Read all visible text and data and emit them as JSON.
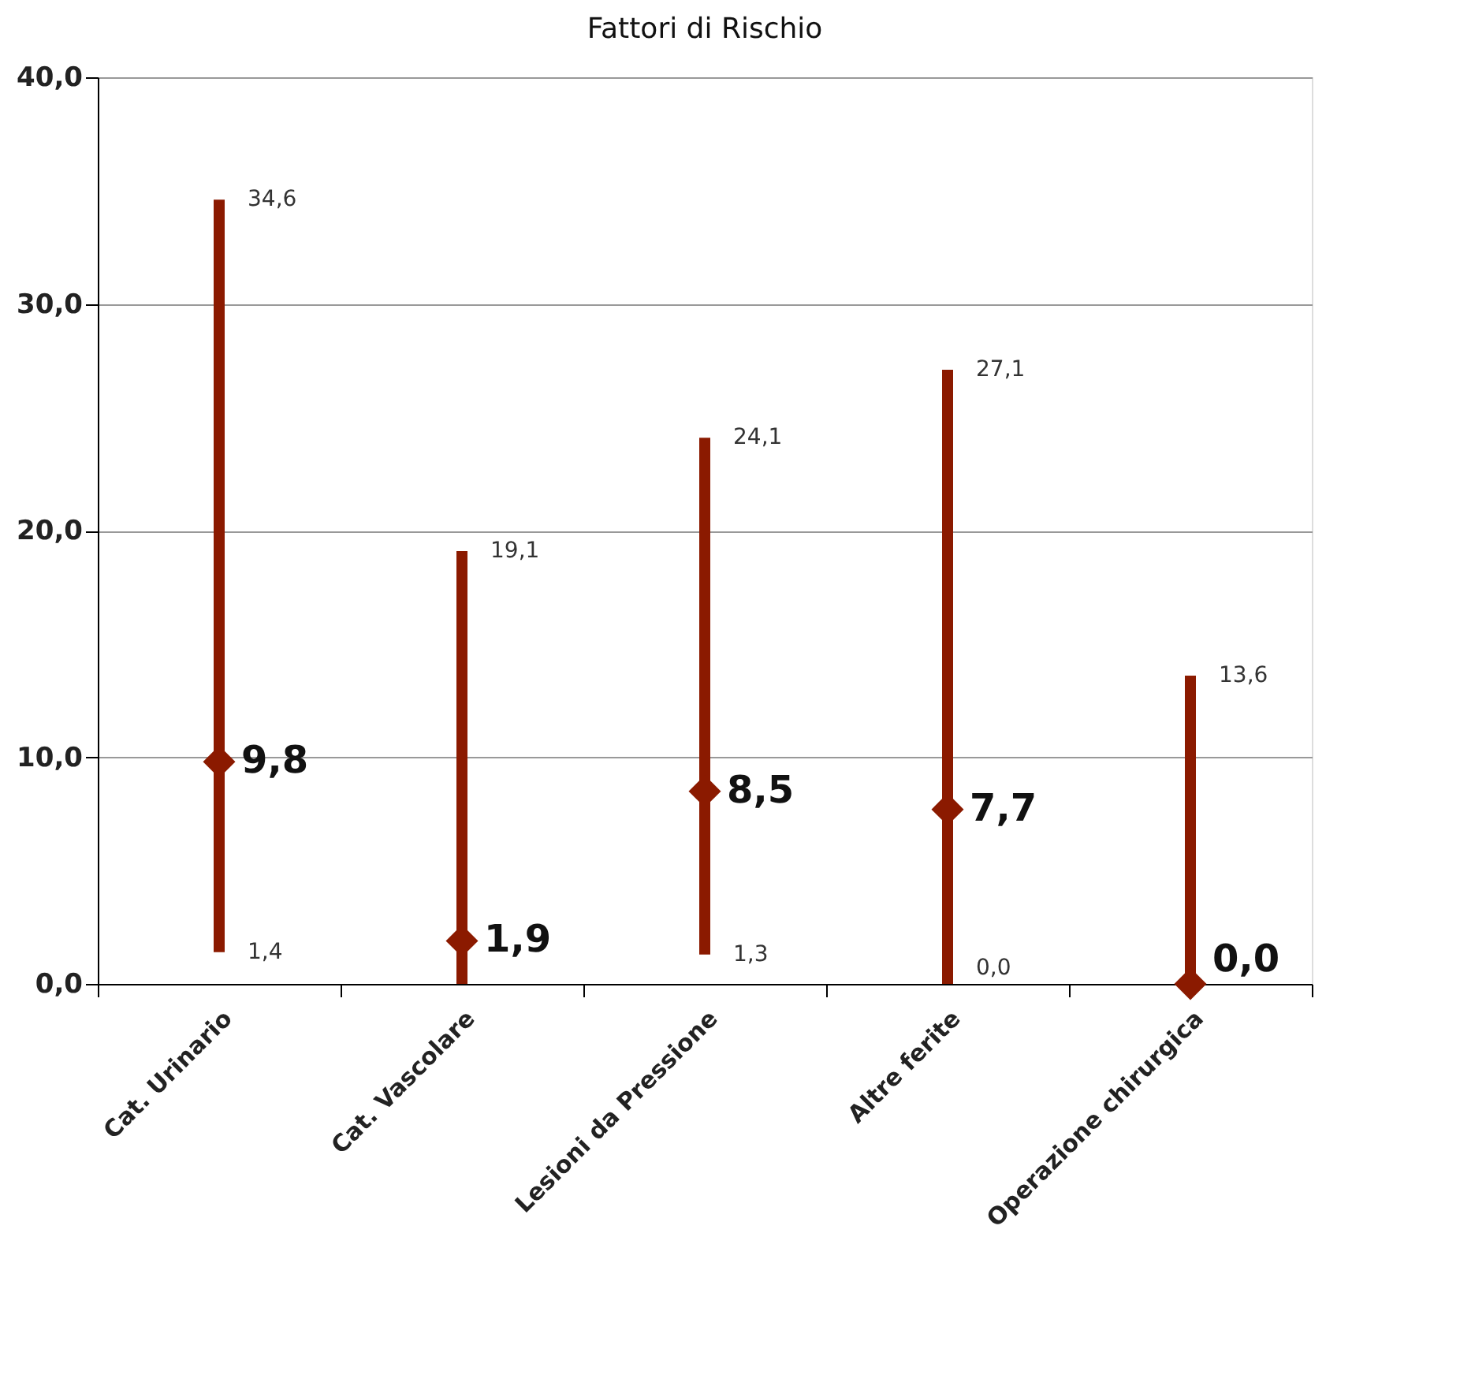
{
  "chart_data": {
    "type": "scatter",
    "title": "Fattori di Rischio",
    "categories": [
      "Cat. Urinario",
      "Cat. Vascolare",
      "Lesioni da Pressione",
      "Altre ferite",
      "Operazione chirurgica"
    ],
    "series": [
      {
        "color": "#8b1a00",
        "values": [
          9.8,
          1.9,
          8.5,
          7.7,
          0.0
        ],
        "errors": [
          [
            1.4,
            34.6
          ],
          [
            0.0,
            19.1
          ],
          [
            1.3,
            24.1
          ],
          [
            0.0,
            27.1
          ],
          [
            0.0,
            13.6
          ]
        ],
        "value_labels": [
          "9,8",
          "1,9",
          "8,5",
          "7,7",
          "0,0"
        ]
      }
    ],
    "ylim": [
      0,
      40
    ],
    "yticks": [
      {
        "value": 0,
        "label": "0,0"
      },
      {
        "value": 10,
        "label": "10,0"
      },
      {
        "value": 20,
        "label": "20,0"
      },
      {
        "value": 30,
        "label": "30,0"
      },
      {
        "value": 40,
        "label": "40,0"
      }
    ],
    "annotations": [
      {
        "text": "34,6",
        "x": "Cat. Urinario",
        "y": 34.6
      },
      {
        "text": "1,4",
        "x": "Cat. Urinario",
        "y": 1.4
      },
      {
        "text": "19,1",
        "x": "Cat. Vascolare",
        "y": 19.1
      },
      {
        "text": "24,1",
        "x": "Lesioni da Pressione",
        "y": 24.1
      },
      {
        "text": "1,3",
        "x": "Lesioni da Pressione",
        "y": 1.3
      },
      {
        "text": "27,1",
        "x": "Altre ferite",
        "y": 27.1
      },
      {
        "text": "0,0",
        "x": "Altre ferite",
        "y": 0.0
      },
      {
        "text": "13,6",
        "x": "Operazione chirurgica",
        "y": 13.6
      }
    ],
    "grid": "y",
    "marker": "diamond"
  }
}
